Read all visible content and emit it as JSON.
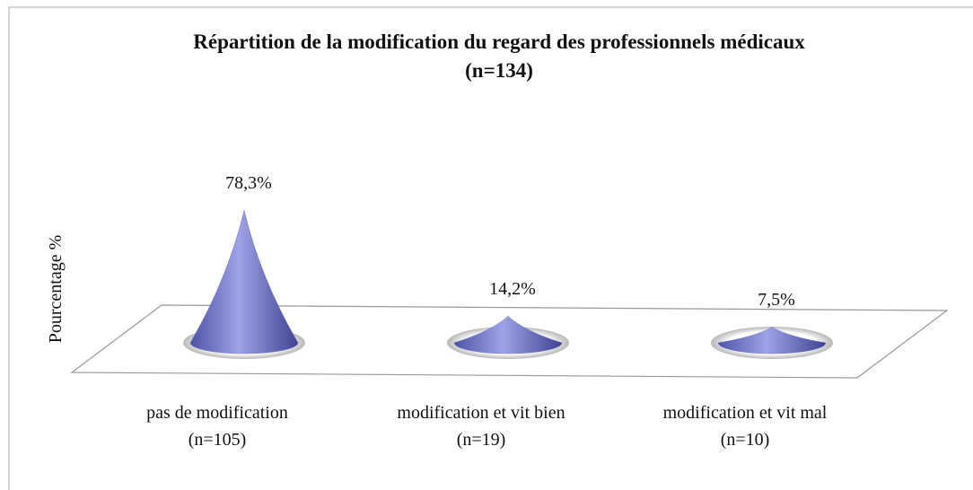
{
  "chart_data": {
    "type": "cone",
    "title": "Répartition de la modification du regard des professionnels médicaux",
    "subtitle": "(n=134)",
    "y_label": "Pourcentage %",
    "categories": [
      [
        "pas de modification",
        "(n=105)"
      ],
      [
        "modification et vit bien",
        "(n=19)"
      ],
      [
        "modification et vit mal",
        "(n=10)"
      ]
    ],
    "values": [
      78.3,
      14.2,
      7.5
    ],
    "value_labels": [
      "78,3%",
      "14,2%",
      "7,5%"
    ],
    "color": "#6f74c8"
  }
}
